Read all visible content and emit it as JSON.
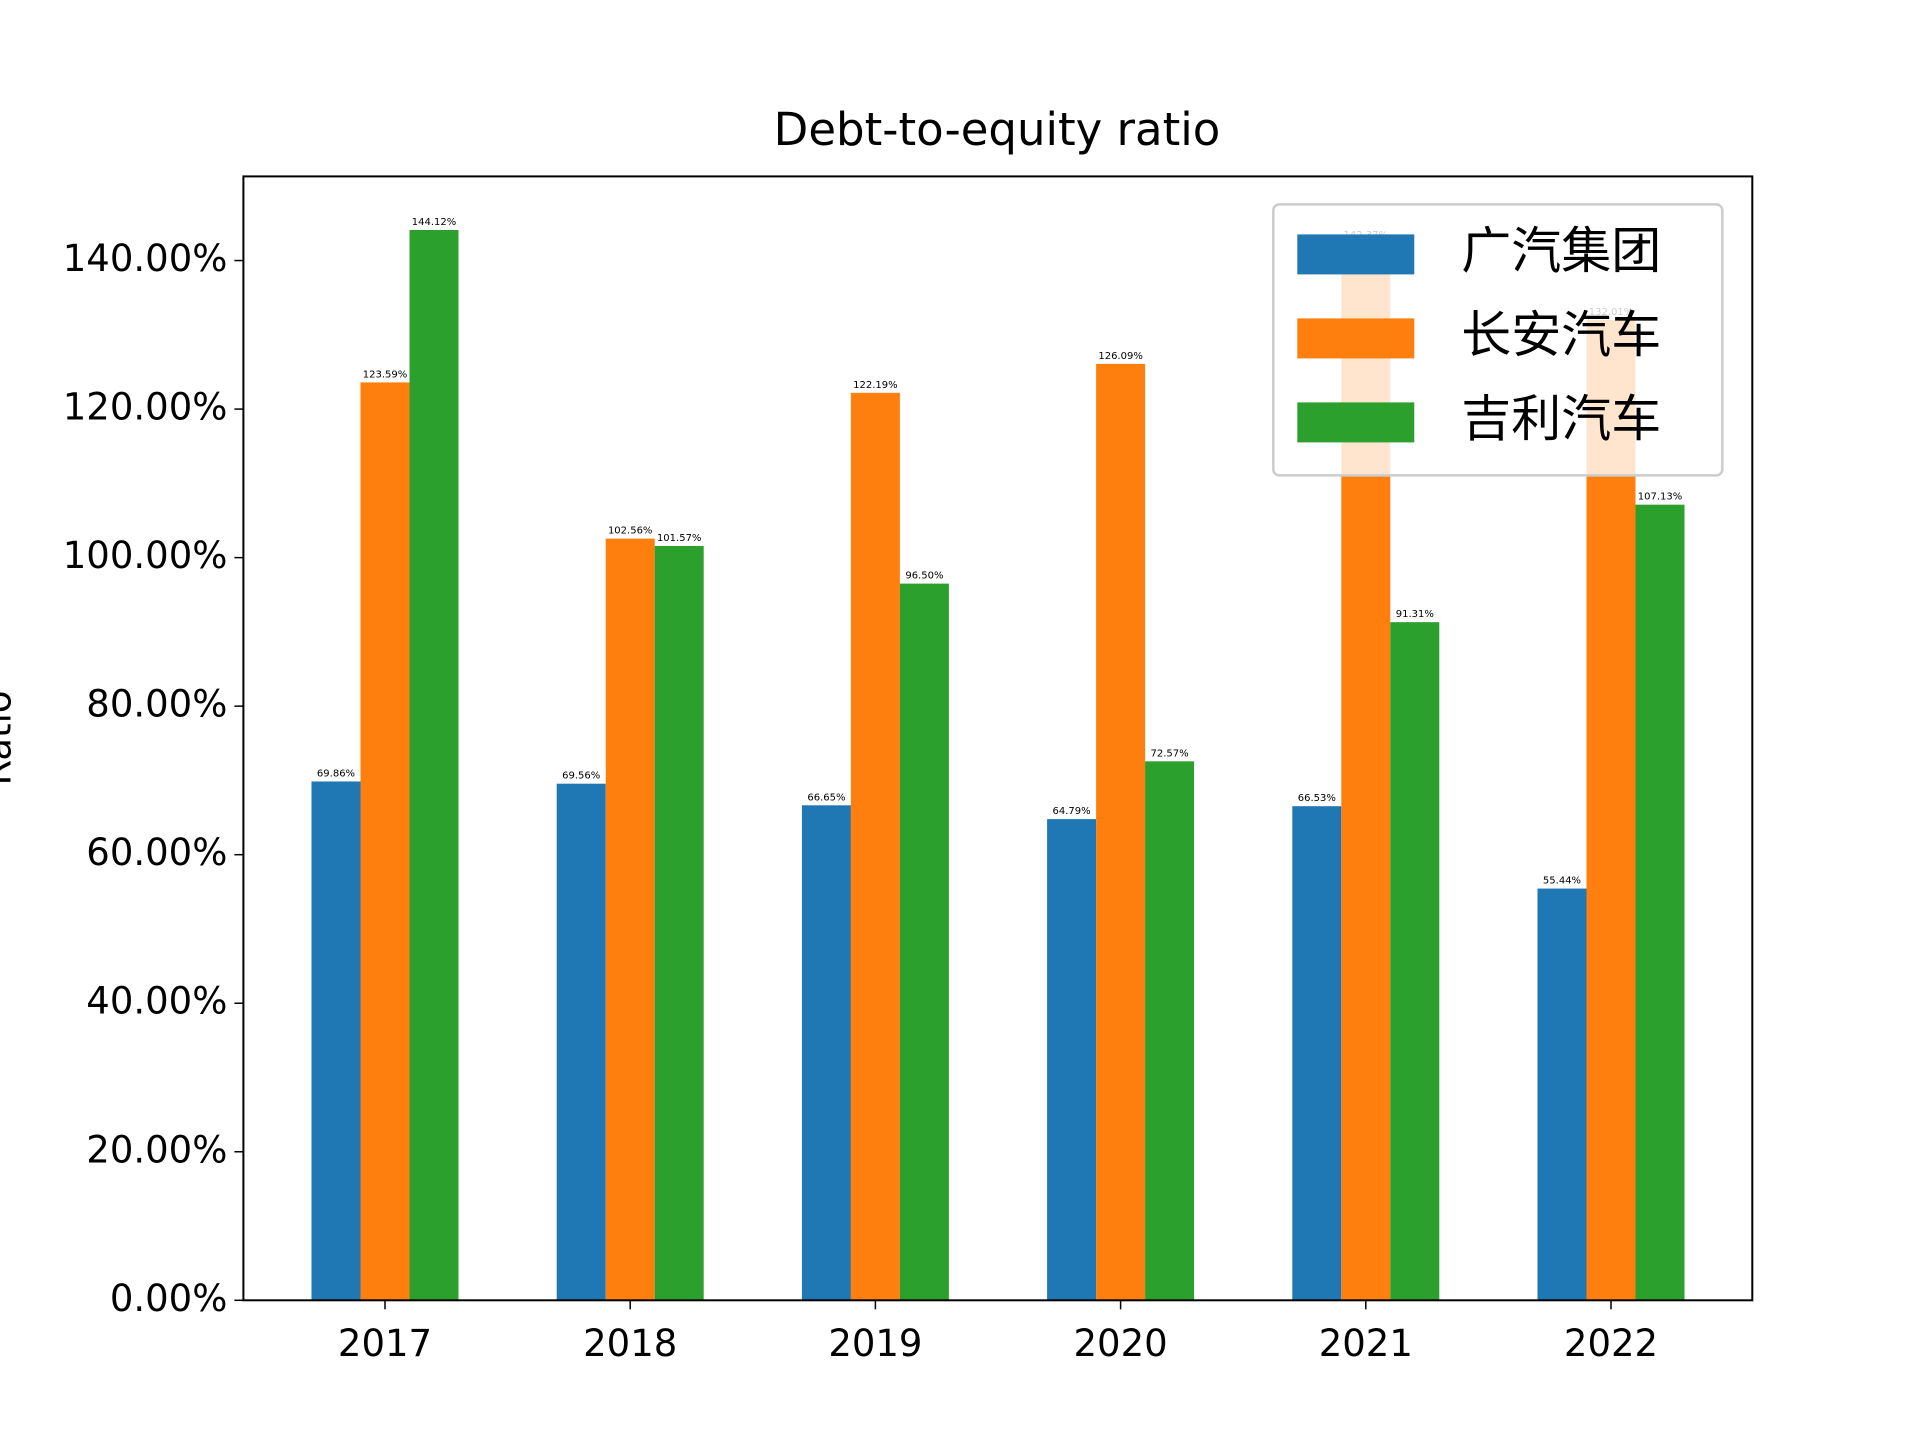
{
  "chart_data": {
    "type": "bar",
    "title": "Debt-to-equity ratio",
    "y_label": "Ratio",
    "categories": [
      "2017",
      "2018",
      "2019",
      "2020",
      "2021",
      "2022"
    ],
    "series": [
      {
        "name": "广汽集团",
        "color": "#1f77b4",
        "values": [
          69.86,
          69.56,
          66.65,
          64.79,
          66.53,
          55.44
        ],
        "value_labels": [
          "69.86%",
          "69.56%",
          "66.65%",
          "64.79%",
          "66.53%",
          "55.44%"
        ]
      },
      {
        "name": "长安汽车",
        "color": "#ff7f0e",
        "values": [
          123.59,
          102.56,
          122.19,
          126.09,
          142.37,
          132.01
        ],
        "value_labels": [
          "123.59%",
          "102.56%",
          "122.19%",
          "126.09%",
          "142.37%",
          "132.01%"
        ]
      },
      {
        "name": "吉利汽车",
        "color": "#2ca02c",
        "values": [
          144.12,
          101.57,
          96.5,
          72.57,
          91.31,
          107.13
        ],
        "value_labels": [
          "144.12%",
          "101.57%",
          "96.50%",
          "72.57%",
          "91.31%",
          "107.13%"
        ]
      }
    ],
    "ylim": [
      0,
      151.33
    ],
    "yticks": [
      {
        "value": 0,
        "label": "0.00%"
      },
      {
        "value": 20,
        "label": "20.00%"
      },
      {
        "value": 40,
        "label": "40.00%"
      },
      {
        "value": 60,
        "label": "60.00%"
      },
      {
        "value": 80,
        "label": "80.00%"
      },
      {
        "value": 100,
        "label": "100.00%"
      },
      {
        "value": 120,
        "label": "120.00%"
      },
      {
        "value": 140,
        "label": "140.00%"
      }
    ],
    "legend": "upper right"
  }
}
